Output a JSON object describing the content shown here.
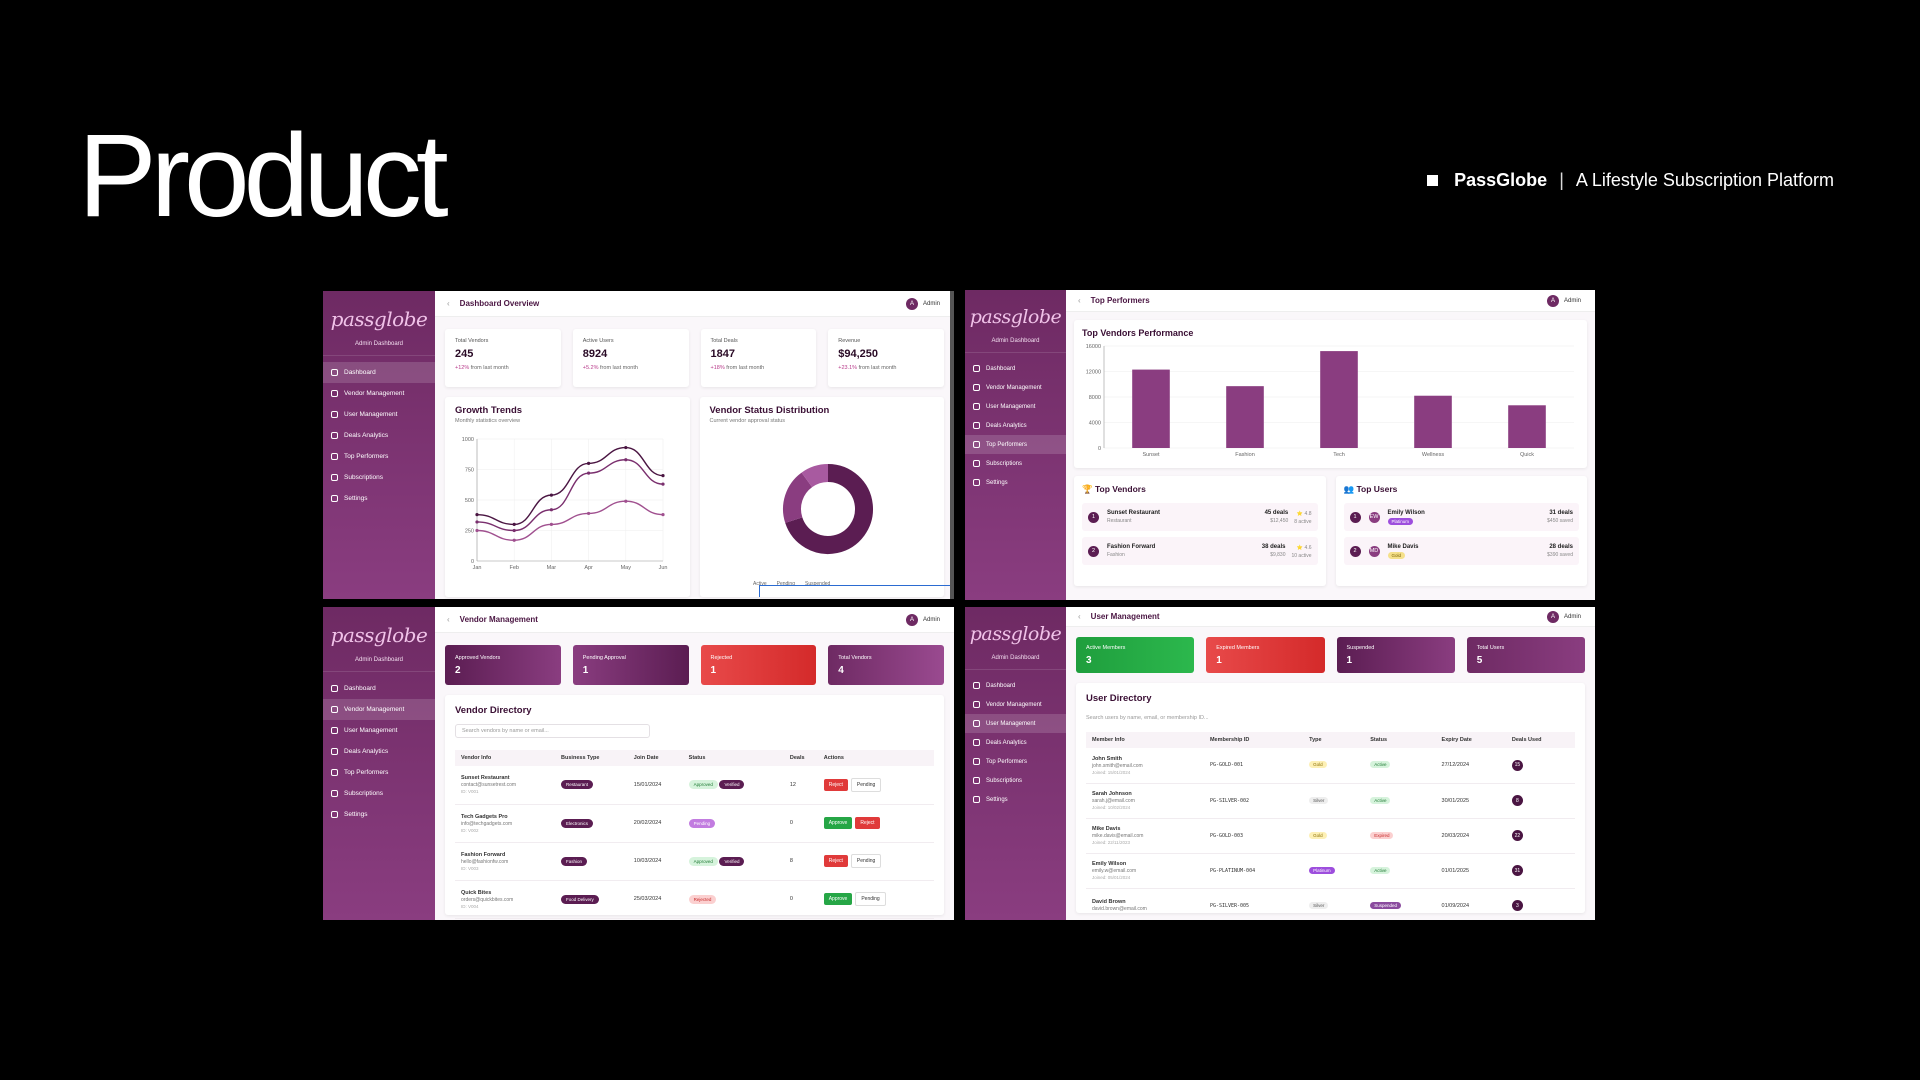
{
  "slide": {
    "title": "Product",
    "brand_name": "PassGlobe",
    "brand_separator": "|",
    "brand_tagline": "A Lifestyle Subscription Platform"
  },
  "app": {
    "logo": "passglobe",
    "subtitle": "Admin Dashboard",
    "admin_label": "Admin",
    "admin_avatar": "A",
    "back_glyph": "‹",
    "nav": [
      "Dashboard",
      "Vendor Management",
      "User Management",
      "Deals Analytics",
      "Top Performers",
      "Subscriptions",
      "Settings"
    ]
  },
  "dashboard": {
    "page_title": "Dashboard Overview",
    "kpis": [
      {
        "label": "Total Vendors",
        "value": "245",
        "delta": "+12%",
        "note": "from last month"
      },
      {
        "label": "Active Users",
        "value": "8924",
        "delta": "+5.2%",
        "note": "from last month"
      },
      {
        "label": "Total Deals",
        "value": "1847",
        "delta": "+18%",
        "note": "from last month"
      },
      {
        "label": "Revenue",
        "value": "$94,250",
        "delta": "+23.1%",
        "note": "from last month"
      }
    ],
    "growth_title": "Growth Trends",
    "growth_sub": "Monthly statistics overview",
    "status_title": "Vendor Status Distribution",
    "status_sub": "Current vendor approval status",
    "status_legend": [
      "Active",
      "Pending",
      "Suspended"
    ]
  },
  "chart_data": [
    {
      "type": "line",
      "title": "Growth Trends",
      "x": [
        "Jan",
        "Feb",
        "Mar",
        "Apr",
        "May",
        "Jun"
      ],
      "ylim": [
        0,
        1000
      ],
      "yticks": [
        0,
        250,
        500,
        750,
        1000
      ],
      "series": [
        {
          "values": [
            380,
            300,
            540,
            800,
            930,
            700
          ]
        },
        {
          "values": [
            320,
            250,
            420,
            720,
            830,
            630
          ]
        },
        {
          "values": [
            250,
            170,
            300,
            390,
            490,
            380
          ]
        }
      ]
    },
    {
      "type": "pie",
      "title": "Vendor Status Distribution",
      "categories": [
        "Active",
        "Pending",
        "Suspended"
      ],
      "values": [
        70,
        20,
        10
      ]
    },
    {
      "type": "bar",
      "title": "Top Vendors Performance",
      "categories": [
        "Sunset",
        "Fashion",
        "Tech",
        "Wellness",
        "Quick"
      ],
      "values": [
        12300,
        9700,
        15200,
        8200,
        6700
      ],
      "ylim": [
        0,
        16000
      ],
      "yticks": [
        0,
        4000,
        8000,
        12000,
        16000
      ]
    }
  ],
  "performers": {
    "page_title": "Top Performers",
    "chart_title": "Top Vendors Performance",
    "vendors_title": "🏆 Top Vendors",
    "users_title": "👥 Top Users",
    "vendors": [
      {
        "rank": "1",
        "name": "Sunset Restaurant",
        "type": "Restaurant",
        "deals": "45 deals",
        "amount": "$12,450",
        "rating": "⭐ 4.8",
        "actives": "8 active"
      },
      {
        "rank": "2",
        "name": "Fashion Forward",
        "type": "Fashion",
        "deals": "38 deals",
        "amount": "$9,830",
        "rating": "⭐ 4.6",
        "actives": "10 active"
      }
    ],
    "users": [
      {
        "rank": "1",
        "initials": "EW",
        "name": "Emily Wilson",
        "tier": "Platinum",
        "deals": "31 deals",
        "saved": "$450 saved"
      },
      {
        "rank": "2",
        "initials": "MD",
        "name": "Mike Davis",
        "tier": "Gold",
        "deals": "28 deals",
        "saved": "$390 saved"
      }
    ]
  },
  "vendor_mgmt": {
    "page_title": "Vendor Management",
    "stats": [
      {
        "label": "Approved Vendors",
        "value": "2"
      },
      {
        "label": "Pending Approval",
        "value": "1"
      },
      {
        "label": "Rejected",
        "value": "1"
      },
      {
        "label": "Total Vendors",
        "value": "4"
      }
    ],
    "dir_title": "Vendor Directory",
    "search_placeholder": "Search vendors by name or email...",
    "columns": [
      "Vendor Info",
      "Business Type",
      "Join Date",
      "Status",
      "Deals",
      "Actions"
    ],
    "rows": [
      {
        "name": "Sunset Restaurant",
        "email": "contact@sunsetrest.com",
        "id": "ID: V001",
        "type": "Restaurant",
        "date": "15/01/2024",
        "status": "Approved",
        "verified": "Verified",
        "deals": "12",
        "a1": "Reject",
        "a2": "Pending"
      },
      {
        "name": "Tech Gadgets Pro",
        "email": "info@techgadgets.com",
        "id": "ID: V002",
        "type": "Electronics",
        "date": "20/02/2024",
        "status": "Pending",
        "verified": "",
        "deals": "0",
        "a1": "Approve",
        "a2": "Reject"
      },
      {
        "name": "Fashion Forward",
        "email": "hello@fashionfw.com",
        "id": "ID: V003",
        "type": "Fashion",
        "date": "10/03/2024",
        "status": "Approved",
        "verified": "Verified",
        "deals": "8",
        "a1": "Reject",
        "a2": "Pending"
      },
      {
        "name": "Quick Bites",
        "email": "orders@quickbites.com",
        "id": "ID: V004",
        "type": "Food Delivery",
        "date": "25/03/2024",
        "status": "Rejected",
        "verified": "",
        "deals": "0",
        "a1": "Approve",
        "a2": "Pending"
      }
    ]
  },
  "user_mgmt": {
    "page_title": "User Management",
    "stats": [
      {
        "label": "Active Members",
        "value": "3"
      },
      {
        "label": "Expired Members",
        "value": "1"
      },
      {
        "label": "Suspended",
        "value": "1"
      },
      {
        "label": "Total Users",
        "value": "5"
      }
    ],
    "dir_title": "User Directory",
    "search_placeholder": "Search users by name, email, or membership ID...",
    "columns": [
      "Member Info",
      "Membership ID",
      "Type",
      "Status",
      "Expiry Date",
      "Deals Used"
    ],
    "rows": [
      {
        "name": "John Smith",
        "email": "john.smith@email.com",
        "joined": "Joined: 15/01/2024",
        "mid": "PG-GOLD-001",
        "type": "Gold",
        "status": "Active",
        "expiry": "27/12/2024",
        "deals": "15"
      },
      {
        "name": "Sarah Johnson",
        "email": "sarah.j@email.com",
        "joined": "Joined: 10/02/2024",
        "mid": "PG-SILVER-002",
        "type": "Silver",
        "status": "Active",
        "expiry": "30/01/2025",
        "deals": "8"
      },
      {
        "name": "Mike Davis",
        "email": "mike.davis@email.com",
        "joined": "Joined: 22/11/2023",
        "mid": "PG-GOLD-003",
        "type": "Gold",
        "status": "Expired",
        "expiry": "20/03/2024",
        "deals": "22"
      },
      {
        "name": "Emily Wilson",
        "email": "emily.w@email.com",
        "joined": "Joined: 05/01/2024",
        "mid": "PG-PLATINUM-004",
        "type": "Platinum",
        "status": "Active",
        "expiry": "01/01/2025",
        "deals": "31"
      },
      {
        "name": "David Brown",
        "email": "david.brown@email.com",
        "joined": "",
        "mid": "PG-SILVER-005",
        "type": "Silver",
        "status": "Suspended",
        "expiry": "01/09/2024",
        "deals": "3"
      }
    ]
  }
}
